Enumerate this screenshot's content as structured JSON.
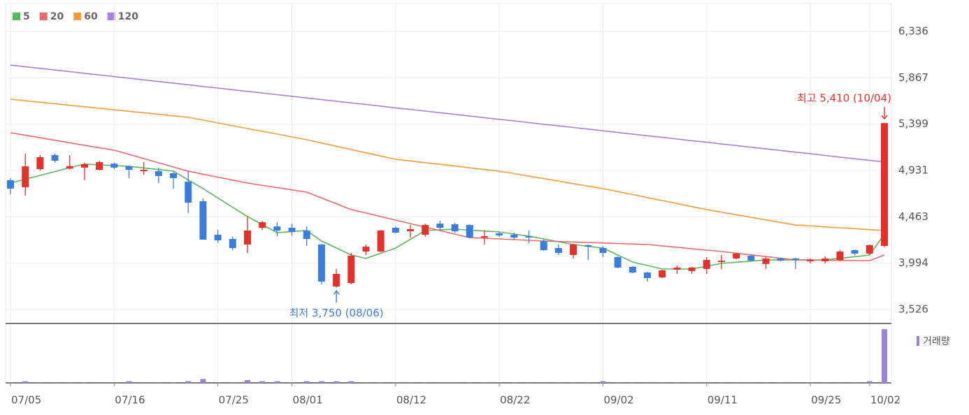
{
  "chart_data": {
    "type": "candlestick",
    "categories": [
      "07/05",
      null,
      null,
      null,
      null,
      null,
      null,
      "07/16",
      null,
      null,
      null,
      null,
      null,
      null,
      "07/25",
      null,
      null,
      null,
      null,
      "08/01",
      null,
      null,
      null,
      null,
      null,
      null,
      "08/12",
      null,
      null,
      null,
      null,
      null,
      null,
      "08/22",
      null,
      null,
      null,
      null,
      null,
      null,
      "09/02",
      null,
      null,
      null,
      null,
      null,
      null,
      "09/11",
      null,
      null,
      null,
      null,
      null,
      null,
      "09/25",
      null,
      null,
      null,
      "10/02",
      null
    ],
    "open": [
      4832,
      4762,
      4945,
      5086,
      4950,
      4960,
      4938,
      5000,
      4973,
      4924,
      4924,
      4903,
      4818,
      4621,
      4282,
      4239,
      4183,
      4352,
      4366,
      4352,
      4324,
      4183,
      3759,
      3794,
      4112,
      4112,
      4352,
      4317,
      4282,
      4394,
      4387,
      4380,
      4253,
      4296,
      4282,
      4267,
      4218,
      4147,
      4077,
      4176,
      4147,
      4056,
      3957,
      3900,
      3851,
      3929,
      3915,
      3936,
      4013,
      4042,
      4070,
      3986,
      4042,
      4042,
      4013,
      4013,
      4027,
      4126,
      4091,
      4169
    ],
    "high": [
      4854,
      5100,
      5086,
      5100,
      5086,
      5010,
      5030,
      5010,
      4980,
      5016,
      4959,
      4917,
      4924,
      4650,
      4330,
      4260,
      4465,
      4422,
      4408,
      4394,
      4366,
      4190,
      3935,
      4098,
      4183,
      4330,
      4366,
      4380,
      4394,
      4422,
      4401,
      4387,
      4324,
      4310,
      4303,
      4324,
      4232,
      4183,
      4190,
      4183,
      4168,
      4063,
      3964,
      3907,
      3929,
      3971,
      3957,
      4056,
      4077,
      4098,
      4077,
      4056,
      4049,
      4049,
      4042,
      4063,
      4126,
      4133,
      4183,
      5410
    ],
    "low": [
      4691,
      4677,
      4931,
      5010,
      4940,
      4832,
      4931,
      4945,
      4854,
      4889,
      4804,
      4748,
      4500,
      4232,
      4200,
      4126,
      4098,
      4330,
      4267,
      4274,
      4168,
      3780,
      3750,
      3780,
      4077,
      4105,
      4296,
      4253,
      4260,
      4324,
      4303,
      4246,
      4183,
      4260,
      4232,
      4197,
      4119,
      4077,
      4042,
      4027,
      4056,
      3943,
      3893,
      3808,
      3844,
      3886,
      3886,
      3886,
      3936,
      4035,
      4013,
      3936,
      4013,
      3936,
      3993,
      3993,
      4013,
      4077,
      4077,
      4155
    ],
    "close": [
      4748,
      4973,
      5065,
      5030,
      4975,
      4995,
      5016,
      4960,
      4938,
      4938,
      4875,
      4854,
      4606,
      4232,
      4225,
      4147,
      4324,
      4408,
      4324,
      4310,
      4239,
      3808,
      3886,
      4070,
      4161,
      4324,
      4303,
      4338,
      4380,
      4352,
      4317,
      4253,
      4267,
      4275,
      4253,
      4253,
      4126,
      4098,
      4183,
      4161,
      4098,
      3950,
      3900,
      3844,
      3922,
      3950,
      3950,
      4027,
      4020,
      4091,
      4020,
      4042,
      4020,
      4027,
      4027,
      4042,
      4112,
      4091,
      4176,
      5410
    ],
    "up_color": "#e3312c",
    "down_color": "#3b7ddd",
    "ylim": [
      3385,
      6336
    ],
    "yticks": [
      {
        "value": 6336,
        "label": "6,336"
      },
      {
        "value": 5867,
        "label": "5,867"
      },
      {
        "value": 5399,
        "label": "5,399"
      },
      {
        "value": 4931,
        "label": "4,931"
      },
      {
        "value": 4463,
        "label": "4,463"
      },
      {
        "value": 3994,
        "label": "3,994"
      },
      {
        "value": 3526,
        "label": "3,526"
      }
    ],
    "grid": true,
    "moving_averages": [
      {
        "name": "5",
        "color": "#5cb85c",
        "values": [
          4804,
          4843,
          4882,
          4920,
          4959,
          4995,
          4988,
          4980,
          4973,
          4957,
          4940,
          4924,
          4836,
          4748,
          4654,
          4559,
          4465,
          4384,
          4303,
          4314,
          4324,
          4218,
          4148,
          4077,
          4042,
          4095,
          4147,
          4236,
          4324,
          4331,
          4338,
          4329,
          4319,
          4310,
          4289,
          4267,
          4239,
          4211,
          4183,
          4165,
          4147,
          4077,
          4006,
          3971,
          3936,
          3936,
          3936,
          3964,
          3992,
          4004,
          4015,
          4027,
          4027,
          4027,
          4027,
          4027,
          4044,
          4060,
          4077,
          4288
        ]
      },
      {
        "name": "20",
        "color": "#ea6a6a",
        "values": [
          5312,
          5287,
          5262,
          5237,
          5211,
          5186,
          5161,
          5136,
          5094,
          5051,
          5009,
          4966,
          4924,
          4894,
          4864,
          4834,
          4804,
          4781,
          4758,
          4735,
          4712,
          4653,
          4595,
          4536,
          4501,
          4465,
          4430,
          4394,
          4359,
          4324,
          4288,
          4253,
          4246,
          4239,
          4232,
          4225,
          4218,
          4213,
          4208,
          4203,
          4198,
          4193,
          4188,
          4183,
          4169,
          4155,
          4140,
          4126,
          4112,
          4095,
          4078,
          4061,
          4044,
          4027,
          4026,
          4024,
          4023,
          4021,
          4020,
          4077
        ]
      },
      {
        "name": "60",
        "color": "#f39a3c",
        "values": [
          5651,
          5636,
          5621,
          5605,
          5590,
          5575,
          5560,
          5544,
          5529,
          5514,
          5499,
          5483,
          5468,
          5440,
          5412,
          5383,
          5355,
          5327,
          5299,
          5270,
          5242,
          5209,
          5176,
          5143,
          5110,
          5077,
          5044,
          5027,
          5010,
          4993,
          4976,
          4958,
          4941,
          4924,
          4899,
          4874,
          4849,
          4824,
          4798,
          4773,
          4748,
          4718,
          4688,
          4657,
          4627,
          4597,
          4566,
          4536,
          4510,
          4484,
          4458,
          4432,
          4406,
          4380,
          4371,
          4361,
          4352,
          4343,
          4333,
          4324
        ]
      },
      {
        "name": "120",
        "color": "#a57fdc",
        "values": [
          5996,
          5979,
          5963,
          5946,
          5930,
          5913,
          5896,
          5880,
          5863,
          5847,
          5830,
          5813,
          5797,
          5780,
          5764,
          5747,
          5730,
          5714,
          5697,
          5681,
          5664,
          5647,
          5631,
          5614,
          5598,
          5581,
          5564,
          5548,
          5531,
          5515,
          5498,
          5481,
          5465,
          5448,
          5432,
          5415,
          5398,
          5382,
          5365,
          5349,
          5332,
          5315,
          5299,
          5282,
          5266,
          5249,
          5232,
          5216,
          5199,
          5183,
          5166,
          5149,
          5133,
          5116,
          5100,
          5083,
          5066,
          5050,
          5033,
          5017
        ]
      }
    ],
    "volume": {
      "label": "거래량",
      "color": "#9b82d2",
      "ylim": [
        0,
        100
      ],
      "values": [
        0.5,
        3,
        0.5,
        0.5,
        0.5,
        0.5,
        0.5,
        0.5,
        3,
        0.5,
        0.5,
        0.5,
        3,
        7,
        0.5,
        0.5,
        5,
        3,
        3,
        0.5,
        3,
        3,
        3,
        3,
        0.5,
        0.5,
        0.5,
        0.5,
        0.5,
        0.5,
        0.5,
        0.5,
        0.5,
        0.5,
        0.5,
        0.5,
        0.5,
        0.5,
        0.5,
        0.5,
        3,
        0.5,
        0.5,
        0.5,
        0.5,
        0.5,
        0.5,
        0.5,
        0.5,
        0.5,
        0.5,
        0.5,
        0.5,
        0.5,
        0.5,
        0.5,
        0.5,
        0.5,
        3,
        96
      ]
    },
    "annotations": {
      "high": "최고 5,410 (10/04)",
      "low": "최저 3,750 (08/06)"
    }
  }
}
